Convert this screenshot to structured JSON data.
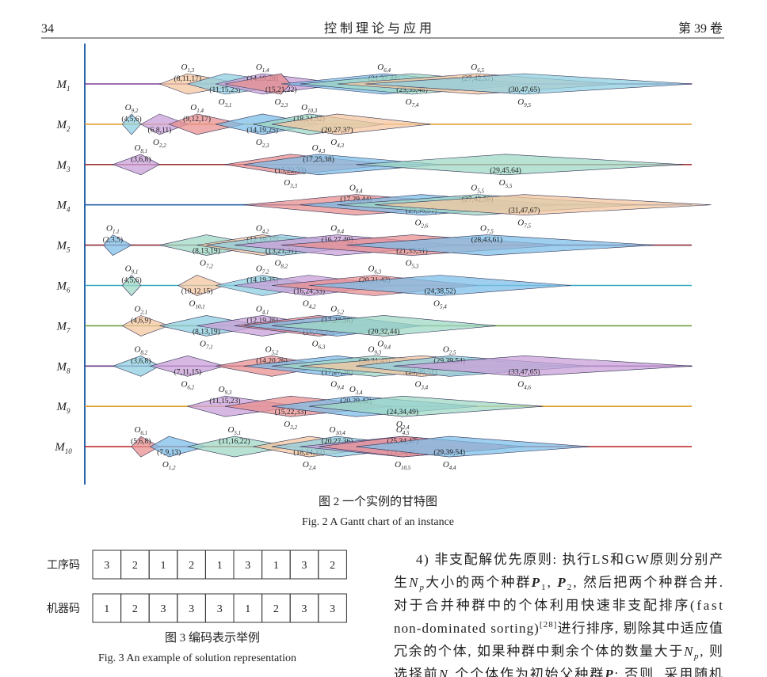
{
  "header": {
    "page": "34",
    "journal": "控 制 理 论 与 应 用",
    "volume": "第 39 卷"
  },
  "gantt": {
    "machines": [
      {
        "name": "M",
        "index": "1",
        "color": "#7b3f9a",
        "ops": [
          {
            "name": "O",
            "index": "1,3",
            "value": "(8,11,17)"
          },
          {
            "name": "O",
            "index": "3,1",
            "value": "(11,15,23)"
          },
          {
            "name": "O",
            "index": "1,4",
            "value": "(14,19,28)"
          },
          {
            "name": "O",
            "index": "2,3",
            "value": "(15,21,22)"
          },
          {
            "name": "O",
            "index": "6,4",
            "value": "(21,32,44)"
          },
          {
            "name": "O",
            "index": "7,4",
            "value": "(23,35,48)"
          },
          {
            "name": "O",
            "index": "6,5",
            "value": "(27,42,57)"
          },
          {
            "name": "O",
            "index": "9,5",
            "value": "(30,47,65)"
          }
        ]
      },
      {
        "name": "M",
        "index": "2",
        "color": "#e0a030",
        "ops": [
          {
            "name": "O",
            "index": "9,2",
            "value": "(4,5,6)"
          },
          {
            "name": "O",
            "index": "2,2",
            "value": "(6,8,11)"
          },
          {
            "name": "O",
            "index": "1,4",
            "value": "(9,12,17)"
          },
          {
            "name": "O",
            "index": "2,3",
            "value": "(14,19,25)"
          },
          {
            "name": "O",
            "index": "10,3",
            "value": "(18,24,32)"
          },
          {
            "name": "O",
            "index": "4,3",
            "value": "(20,27,37)"
          }
        ]
      },
      {
        "name": "M",
        "index": "3",
        "color": "#a03535",
        "ops": [
          {
            "name": "O",
            "index": "8,1",
            "value": "(3,6,8)"
          },
          {
            "name": "O",
            "index": "3,3",
            "value": "(15,22,33)"
          },
          {
            "name": "O",
            "index": "4,3",
            "value": "(17,25,38)"
          },
          {
            "name": "O",
            "index": "5,5",
            "value": "(29,45,64)"
          }
        ]
      },
      {
        "name": "M",
        "index": "4",
        "color": "#2a64a8",
        "ops": [
          {
            "name": "O",
            "index": "8,4",
            "value": "(17,29,44)"
          },
          {
            "name": "O",
            "index": "2,6",
            "value": "(23,36,51)"
          },
          {
            "name": "O",
            "index": "5,5",
            "value": "(27,42,59)"
          },
          {
            "name": "O",
            "index": "7,5",
            "value": "(31,47,67)"
          }
        ]
      },
      {
        "name": "M",
        "index": "5",
        "color": "#8c2a3a",
        "ops": [
          {
            "name": "O",
            "index": "1,1",
            "value": "(2,3,5)"
          },
          {
            "name": "O",
            "index": "7,2",
            "value": "(8,13,19)"
          },
          {
            "name": "O",
            "index": "4,2",
            "value": "(12,19,27)"
          },
          {
            "name": "O",
            "index": "8,2",
            "value": "(13,21,31)"
          },
          {
            "name": "O",
            "index": "8,4",
            "value": "(16,27,40)"
          },
          {
            "name": "O",
            "index": "5,3",
            "value": "(21,35,51)"
          },
          {
            "name": "O",
            "index": "7,5",
            "value": "(28,43,61)"
          }
        ]
      },
      {
        "name": "M",
        "index": "6",
        "color": "#35a8c0",
        "ops": [
          {
            "name": "O",
            "index": "9,1",
            "value": "(4,5,6)"
          },
          {
            "name": "O",
            "index": "10,1",
            "value": "(10,12,15)"
          },
          {
            "name": "O",
            "index": "7,2",
            "value": "(14,19,25)"
          },
          {
            "name": "O",
            "index": "4,2",
            "value": "(16,24,33)"
          },
          {
            "name": "O",
            "index": "6,3",
            "value": "(20,31,42)"
          },
          {
            "name": "O",
            "index": "5,4",
            "value": "(24,38,52)"
          }
        ]
      },
      {
        "name": "M",
        "index": "7",
        "color": "#6fa040",
        "ops": [
          {
            "name": "O",
            "index": "2,1",
            "value": "(4,6,9)"
          },
          {
            "name": "O",
            "index": "7,1",
            "value": "(8,13,19)"
          },
          {
            "name": "O",
            "index": "4,1",
            "value": "(12,19,26)"
          },
          {
            "name": "O",
            "index": "6,3",
            "value": "(16,25,35)"
          },
          {
            "name": "O",
            "index": "5,2",
            "value": "(17,27,36)"
          },
          {
            "name": "O",
            "index": "9,4",
            "value": "(20,32,44)"
          }
        ]
      },
      {
        "name": "M",
        "index": "8",
        "color": "#6a3a8a",
        "ops": [
          {
            "name": "O",
            "index": "8,2",
            "value": "(3,6,8)"
          },
          {
            "name": "O",
            "index": "6,2",
            "value": "(7,11,15)"
          },
          {
            "name": "O",
            "index": "5,2",
            "value": "(14,20,26)"
          },
          {
            "name": "O",
            "index": "9,4",
            "value": "(17,27,36)"
          },
          {
            "name": "O",
            "index": "9,3",
            "value": "(20,31,43)"
          },
          {
            "name": "O",
            "index": "3,4",
            "value": "(23,36,51)"
          },
          {
            "name": "O",
            "index": "2,5",
            "value": "(29,39,54)"
          },
          {
            "name": "O",
            "index": "4,6",
            "value": "(33,47,65)"
          }
        ]
      },
      {
        "name": "M",
        "index": "9",
        "color": "#e0a030",
        "ops": [
          {
            "name": "O",
            "index": "9,3",
            "value": "(11,15,23)"
          },
          {
            "name": "O",
            "index": "3,2",
            "value": "(15,22,33)"
          },
          {
            "name": "O",
            "index": "3,4",
            "value": "(20,29,42)"
          },
          {
            "name": "O",
            "index": "2,4",
            "value": "(24,34,49)"
          }
        ]
      },
      {
        "name": "M",
        "index": "10",
        "color": "#c03030",
        "ops": [
          {
            "name": "O",
            "index": "6,1",
            "value": "(5,6,8)"
          },
          {
            "name": "O",
            "index": "1,2",
            "value": "(7,9,13)"
          },
          {
            "name": "O",
            "index": "5,1",
            "value": "(11,16,22)"
          },
          {
            "name": "O",
            "index": "2,4",
            "value": "(18,24,32)"
          },
          {
            "name": "O",
            "index": "10,4",
            "value": "(20,27,36)"
          },
          {
            "name": "O",
            "index": "10,5",
            "value": "(23,34,47)"
          },
          {
            "name": "O",
            "index": "4,5",
            "value": "(25,34,47)"
          },
          {
            "name": "O",
            "index": "4,4",
            "value": "(29,39,54)"
          }
        ]
      }
    ]
  },
  "figure2": {
    "caption_cn": "图 2  一个实例的甘特图",
    "caption_en": "Fig. 2  A Gantt chart of an instance"
  },
  "figure3": {
    "rows": [
      {
        "label": "工序码",
        "cells": [
          "3",
          "2",
          "1",
          "2",
          "1",
          "3",
          "1",
          "3",
          "2"
        ]
      },
      {
        "label": "机器码",
        "cells": [
          "1",
          "2",
          "3",
          "3",
          "3",
          "1",
          "2",
          "3",
          "3"
        ]
      }
    ],
    "caption_cn": "图 3  编码表示举例",
    "caption_en": "Fig. 3  An example of solution representation"
  },
  "paragraph": {
    "lines": [
      [
        {
          "text": "4) 非支配解优先原则: 执行LS和GW原则分别产",
          "style": "n"
        }
      ],
      [
        {
          "text": "生",
          "style": "n"
        },
        {
          "text": "N",
          "style": "i"
        },
        {
          "text": "p",
          "style": "isub"
        },
        {
          "text": "大小的两个种群",
          "style": "n"
        },
        {
          "text": "P",
          "style": "b"
        },
        {
          "text": "1",
          "style": "sub"
        },
        {
          "text": ", ",
          "style": "n"
        },
        {
          "text": "P",
          "style": "b"
        },
        {
          "text": "2",
          "style": "sub"
        },
        {
          "text": ", 然后把两个种群合并.",
          "style": "n"
        }
      ],
      [
        {
          "text": "对于合并种群中的个体利用快速非支配排序(fast",
          "style": "n"
        }
      ],
      [
        {
          "text": "non-dominated sorting)",
          "style": "n"
        },
        {
          "text": "[28]",
          "style": "sup"
        },
        {
          "text": "进行排序, 剔除其中适应值",
          "style": "n"
        }
      ],
      [
        {
          "text": "冗余的个体, 如果种群中剩余个体的数量大于",
          "style": "n"
        },
        {
          "text": "N",
          "style": "i"
        },
        {
          "text": "p",
          "style": "isub"
        },
        {
          "text": ", 则",
          "style": "n"
        }
      ],
      [
        {
          "text": "选择前",
          "style": "n"
        },
        {
          "text": "N",
          "style": "i"
        },
        {
          "text": "p",
          "style": "isub"
        },
        {
          "text": "个个体作为初始父种群",
          "style": "n"
        },
        {
          "text": "P",
          "style": "b"
        },
        {
          "text": "; 否则, 采用随机",
          "style": "n"
        }
      ]
    ]
  }
}
